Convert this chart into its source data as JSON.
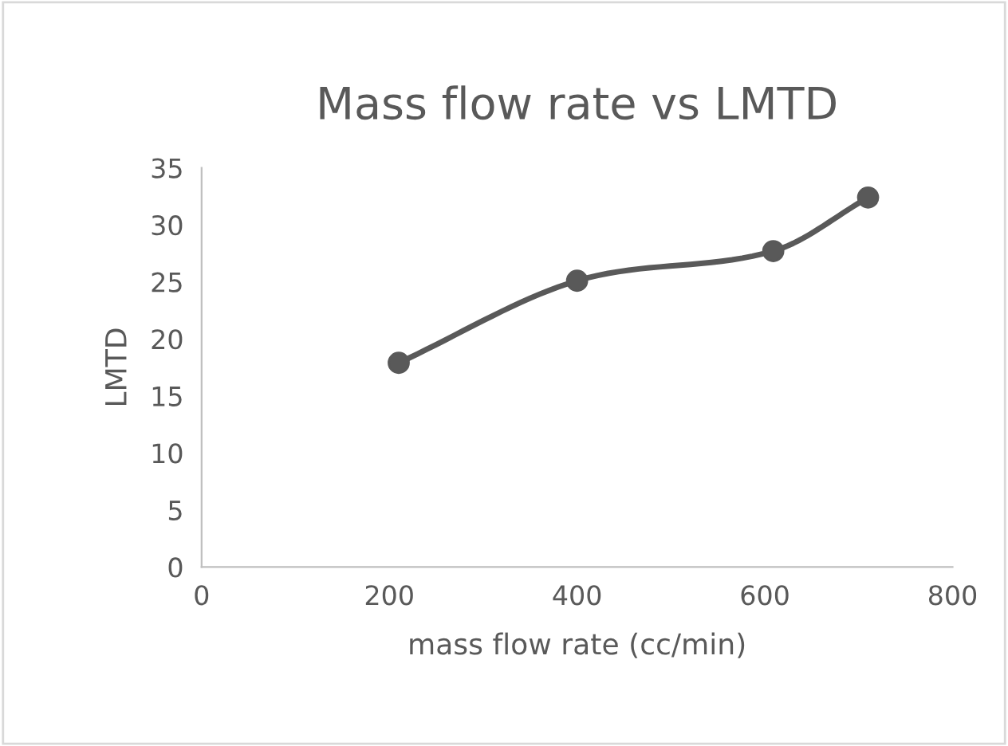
{
  "chart_data": {
    "type": "line",
    "title": "Mass flow rate vs LMTD",
    "xlabel": "mass flow rate (cc/min)",
    "ylabel": "LMTD",
    "series": [
      {
        "color": "#595959",
        "x": [
          210,
          400,
          609,
          710
        ],
        "values": [
          17.9,
          25.1,
          27.7,
          32.4
        ]
      }
    ],
    "xlim": [
      0,
      800
    ],
    "xticks": [
      0,
      200,
      400,
      600,
      800
    ],
    "ylim": [
      0,
      35
    ],
    "yticks": [
      0,
      5,
      10,
      15,
      20,
      25,
      30,
      35
    ],
    "marker": "circle",
    "line_style": "solid",
    "grid": false
  }
}
